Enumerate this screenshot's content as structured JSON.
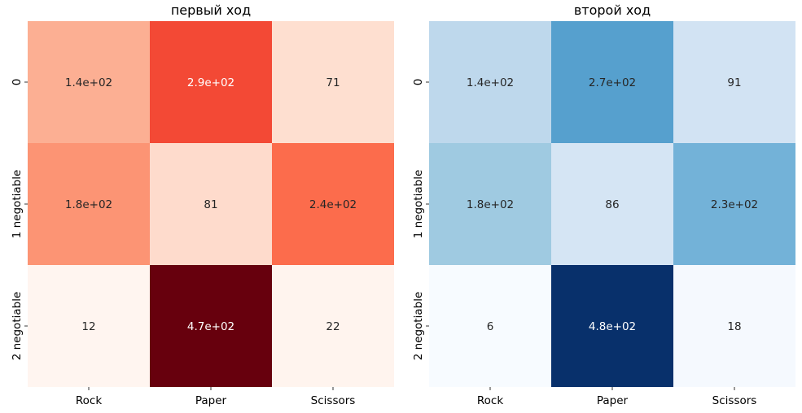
{
  "chart_data": [
    {
      "type": "heatmap",
      "title": "первый ход",
      "colormap": "Reds",
      "colors": [
        "#fff5f0",
        "#67000d"
      ],
      "x_categories": [
        "Rock",
        "Paper",
        "Scissors"
      ],
      "y_categories": [
        "0",
        "1 negotiable",
        "2 negotiable"
      ],
      "values": [
        [
          140,
          290,
          71
        ],
        [
          180,
          81,
          240
        ],
        [
          12,
          470,
          22
        ]
      ],
      "annotations": [
        [
          "1.4e+02",
          "2.9e+02",
          "71"
        ],
        [
          "1.8e+02",
          "81",
          "2.4e+02"
        ],
        [
          "12",
          "4.7e+02",
          "22"
        ]
      ],
      "cell_colors": [
        [
          "#fcaf93",
          "#f34935",
          "#fedfd0"
        ],
        [
          "#fc9474",
          "#fedbcc",
          "#fc6c4c"
        ],
        [
          "#fff5f0",
          "#67000d",
          "#fff4ee"
        ]
      ],
      "colorbar": false
    },
    {
      "type": "heatmap",
      "title": "второй ход",
      "colormap": "Blues",
      "colors": [
        "#f7fbff",
        "#08306b"
      ],
      "x_categories": [
        "Rock",
        "Paper",
        "Scissors"
      ],
      "y_categories": [
        "0",
        "1 negotiable",
        "2 negotiable"
      ],
      "values": [
        [
          140,
          270,
          91
        ],
        [
          180,
          86,
          230
        ],
        [
          6,
          480,
          18
        ]
      ],
      "annotations": [
        [
          "1.4e+02",
          "2.7e+02",
          "91"
        ],
        [
          "1.8e+02",
          "86",
          "2.3e+02"
        ],
        [
          "6",
          "4.8e+02",
          "18"
        ]
      ],
      "cell_colors": [
        [
          "#bed8ec",
          "#56a0ce",
          "#d2e3f3"
        ],
        [
          "#9fcae1",
          "#d5e5f4",
          "#73b2d8"
        ],
        [
          "#f7fbff",
          "#08306b",
          "#f5f9fe"
        ]
      ],
      "colorbar": false
    }
  ]
}
